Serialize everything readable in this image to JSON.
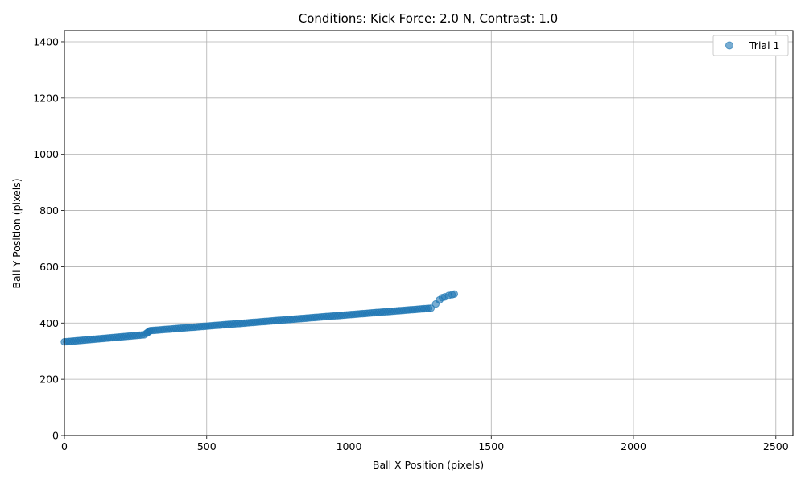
{
  "chart_data": {
    "type": "scatter",
    "title": "Conditions: Kick Force: 2.0 N, Contrast: 1.0",
    "xlabel": "Ball X Position (pixels)",
    "ylabel": "Ball Y Position (pixels)",
    "xlim": [
      0,
      2560
    ],
    "ylim": [
      0,
      1440
    ],
    "xticks": [
      0,
      500,
      1000,
      1500,
      2000,
      2500
    ],
    "yticks": [
      0,
      200,
      400,
      600,
      800,
      1000,
      1200,
      1400
    ],
    "grid": true,
    "legend_position": "top-right",
    "colors": {
      "series": "#1f77b4"
    },
    "series": [
      {
        "name": "Trial 1",
        "segments": [
          {
            "x_start": 0,
            "x_end": 280,
            "y_start": 333,
            "y_end": 358,
            "step": 8
          },
          {
            "x_start": 288,
            "x_end": 300,
            "y_start": 363,
            "y_end": 372,
            "step": 4
          },
          {
            "x_start": 304,
            "x_end": 1290,
            "y_start": 373,
            "y_end": 453,
            "step": 8
          }
        ],
        "points": [
          {
            "x": 1305,
            "y": 468
          },
          {
            "x": 1318,
            "y": 482
          },
          {
            "x": 1328,
            "y": 490
          },
          {
            "x": 1337,
            "y": 493
          },
          {
            "x": 1350,
            "y": 498
          },
          {
            "x": 1362,
            "y": 501
          },
          {
            "x": 1370,
            "y": 503
          }
        ]
      }
    ]
  }
}
